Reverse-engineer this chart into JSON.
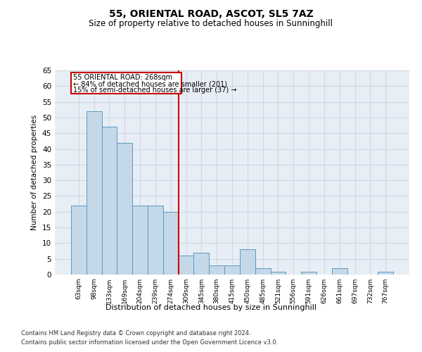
{
  "title": "55, ORIENTAL ROAD, ASCOT, SL5 7AZ",
  "subtitle": "Size of property relative to detached houses in Sunninghill",
  "xlabel": "Distribution of detached houses by size in Sunninghill",
  "ylabel": "Number of detached properties",
  "footer_line1": "Contains HM Land Registry data © Crown copyright and database right 2024.",
  "footer_line2": "Contains public sector information licensed under the Open Government Licence v3.0.",
  "annotation_line1": "55 ORIENTAL ROAD: 268sqm",
  "annotation_line2": "← 84% of detached houses are smaller (201)",
  "annotation_line3": "15% of semi-detached houses are larger (37) →",
  "bar_color": "#c5d8e8",
  "bar_edge_color": "#5a9abf",
  "vline_color": "#cc0000",
  "annotation_box_color": "#cc0000",
  "grid_color": "#d0d8e4",
  "background_color": "#e8eef5",
  "categories": [
    "63sqm",
    "98sqm",
    "133sqm",
    "169sqm",
    "204sqm",
    "239sqm",
    "274sqm",
    "309sqm",
    "345sqm",
    "380sqm",
    "415sqm",
    "450sqm",
    "485sqm",
    "521sqm",
    "556sqm",
    "591sqm",
    "626sqm",
    "661sqm",
    "697sqm",
    "732sqm",
    "767sqm"
  ],
  "values": [
    22,
    52,
    47,
    42,
    22,
    22,
    20,
    6,
    7,
    3,
    3,
    8,
    2,
    1,
    0,
    1,
    0,
    2,
    0,
    0,
    1
  ],
  "vline_pos": 6.5,
  "ylim": [
    0,
    65
  ],
  "yticks": [
    0,
    5,
    10,
    15,
    20,
    25,
    30,
    35,
    40,
    45,
    50,
    55,
    60,
    65
  ]
}
